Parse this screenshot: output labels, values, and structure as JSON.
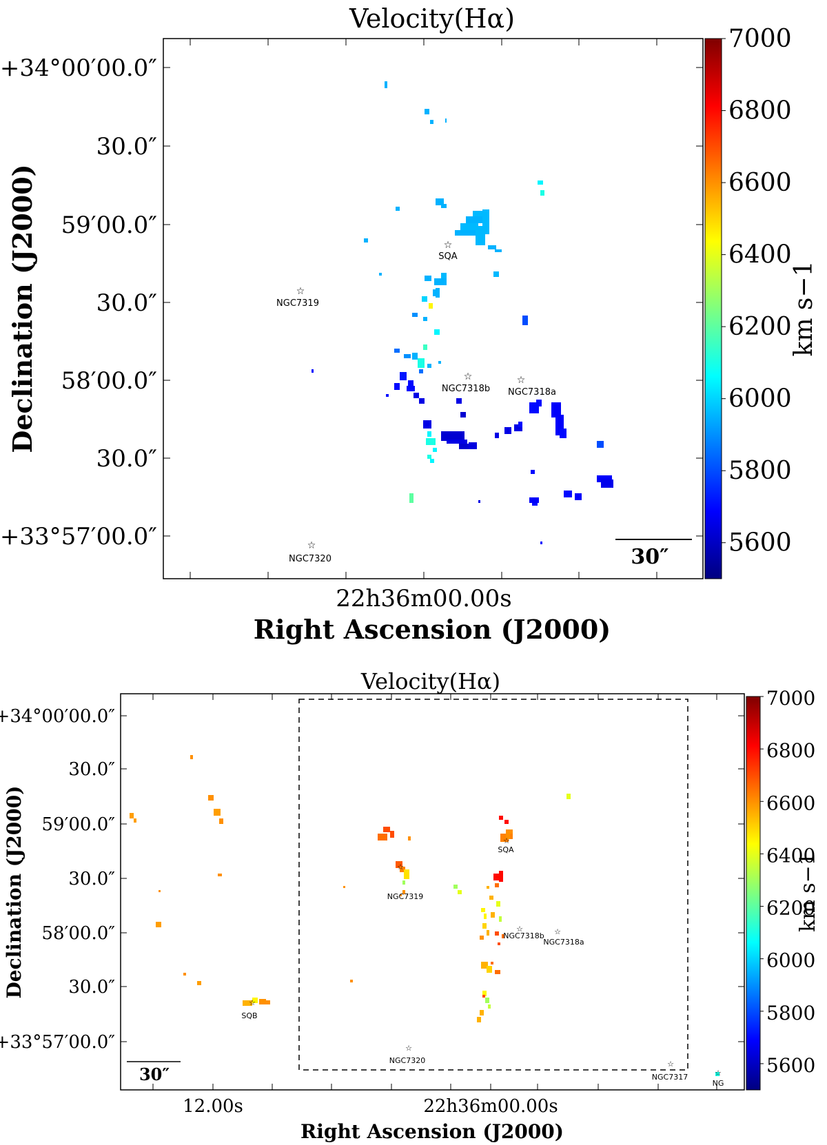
{
  "colormap": {
    "name": "jet",
    "min": 5500,
    "max": 7000,
    "stops": [
      "#00007f",
      "#0000ff",
      "#007fff",
      "#00ffff",
      "#7fff7f",
      "#ffff00",
      "#ff7f00",
      "#ff0000",
      "#7f0000"
    ]
  },
  "chart_data": [
    {
      "type": "heatmap",
      "title": "Velocity(Hα)",
      "xlabel": "Right Ascension (J2000)",
      "ylabel": "Declination (J2000)",
      "x_tick_labels": [
        "22h36m00.00s"
      ],
      "y_tick_labels": [
        "+34°00′00.0″",
        "30.0″",
        "59′00.0″",
        "30.0″",
        "58′00.0″",
        "30.0″",
        "+33°57′00.0″"
      ],
      "colorbar": {
        "label": "km s−1",
        "ticks": [
          7000,
          6800,
          6600,
          6400,
          6200,
          6000,
          5800,
          5600
        ],
        "range": [
          5500,
          7000
        ]
      },
      "scale_bar": "30″",
      "objects": [
        "SQA",
        "NGC7319",
        "NGC7318b",
        "NGC7318a",
        "NGC7320"
      ],
      "grid": false
    },
    {
      "type": "heatmap",
      "title": "Velocity(Hα)",
      "xlabel": "Right Ascension (J2000)",
      "ylabel": "Declination (J2000)",
      "x_tick_labels": [
        "12.00s",
        "22h36m00.00s"
      ],
      "y_tick_labels": [
        "+34°00′00.0″",
        "30.0″",
        "59′00.0″",
        "30.0″",
        "58′00.0″",
        "30.0″",
        "+33°57′00.0″"
      ],
      "colorbar": {
        "label": "km s−1",
        "ticks": [
          7000,
          6800,
          6600,
          6400,
          6200,
          6000,
          5800,
          5600
        ],
        "range": [
          5500,
          7000
        ]
      },
      "scale_bar": "30″",
      "objects": [
        "SQA",
        "NGC7319",
        "NGC7318b",
        "NGC7318a",
        "SQB",
        "NGC7320",
        "NGC7317",
        "NG"
      ],
      "grid": false
    }
  ]
}
